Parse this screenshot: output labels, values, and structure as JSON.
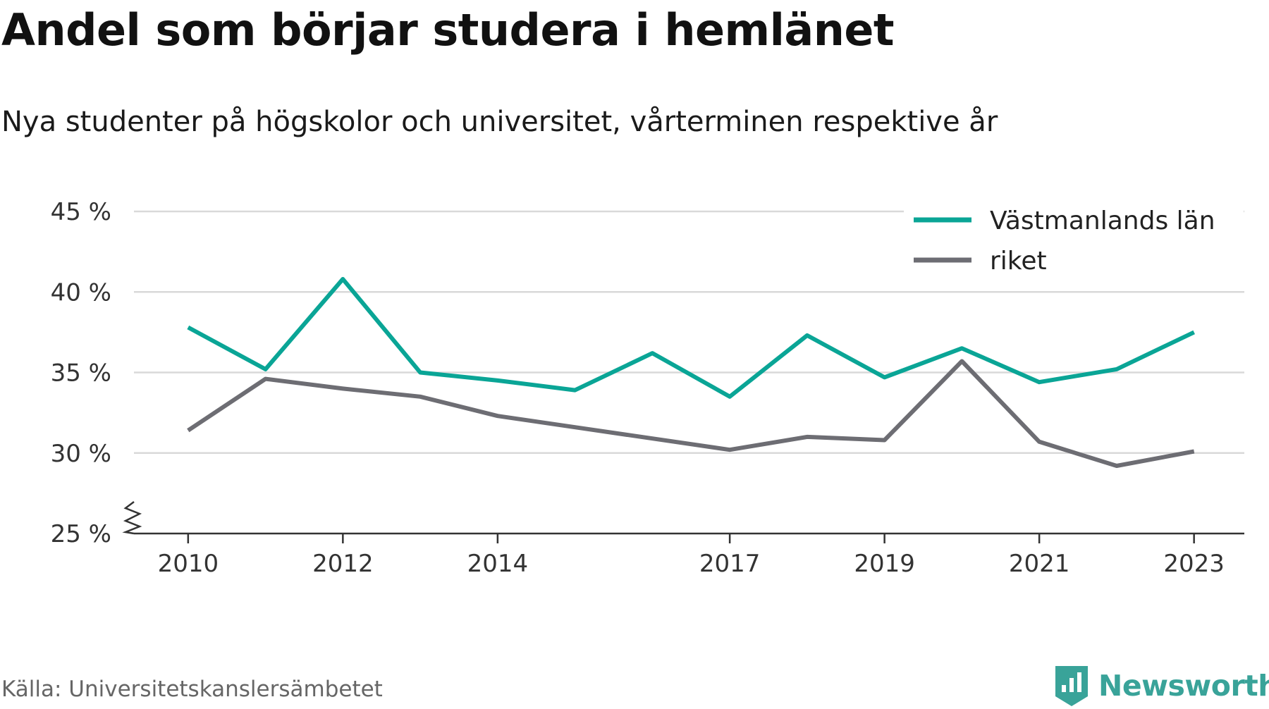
{
  "colors": {
    "vastmanland": "#0aa596",
    "riket": "#6d6d73",
    "grid": "#d9d9d9",
    "axis": "#333333",
    "brand": "#39a399"
  },
  "footer": {
    "source": "Källa: Universitetskanslersämbetet",
    "brand": "Newsworthy",
    "brand_icon": "newsworthy-logo-icon"
  },
  "chart_data": {
    "type": "line",
    "title": "Andel som börjar studera i hemlänet",
    "subtitle": "Nya studenter på högskolor och universitet, vårterminen respektive år",
    "x": [
      2010,
      2011,
      2012,
      2013,
      2014,
      2015,
      2016,
      2017,
      2018,
      2019,
      2020,
      2021,
      2022,
      2023
    ],
    "x_ticks": [
      {
        "value": 2010,
        "label": "2010"
      },
      {
        "value": 2012,
        "label": "2012"
      },
      {
        "value": 2014,
        "label": "2014"
      },
      {
        "value": 2017,
        "label": "2017"
      },
      {
        "value": 2019,
        "label": "2019"
      },
      {
        "value": 2021,
        "label": "2021"
      },
      {
        "value": 2023,
        "label": "2023"
      }
    ],
    "y_ticks": [
      {
        "value": 25,
        "label": "25 %"
      },
      {
        "value": 30,
        "label": "30 %"
      },
      {
        "value": 35,
        "label": "35 %"
      },
      {
        "value": 40,
        "label": "40 %"
      },
      {
        "value": 45,
        "label": "45 %"
      }
    ],
    "ylim": [
      25,
      45
    ],
    "xlim": [
      2009.3,
      2023.65
    ],
    "y_axis_break": true,
    "grid": "horizontal",
    "legend_position": "top-right",
    "series": [
      {
        "name": "Västmanlands län",
        "color": "#0aa596",
        "values": [
          37.8,
          35.2,
          40.8,
          35.0,
          34.5,
          33.9,
          36.2,
          33.5,
          37.3,
          34.7,
          36.5,
          34.4,
          35.2,
          37.5
        ]
      },
      {
        "name": "riket",
        "color": "#6d6d73",
        "values": [
          31.4,
          34.6,
          34.0,
          33.5,
          32.3,
          31.6,
          30.9,
          30.2,
          31.0,
          30.8,
          35.7,
          30.7,
          29.2,
          30.1
        ]
      }
    ]
  }
}
